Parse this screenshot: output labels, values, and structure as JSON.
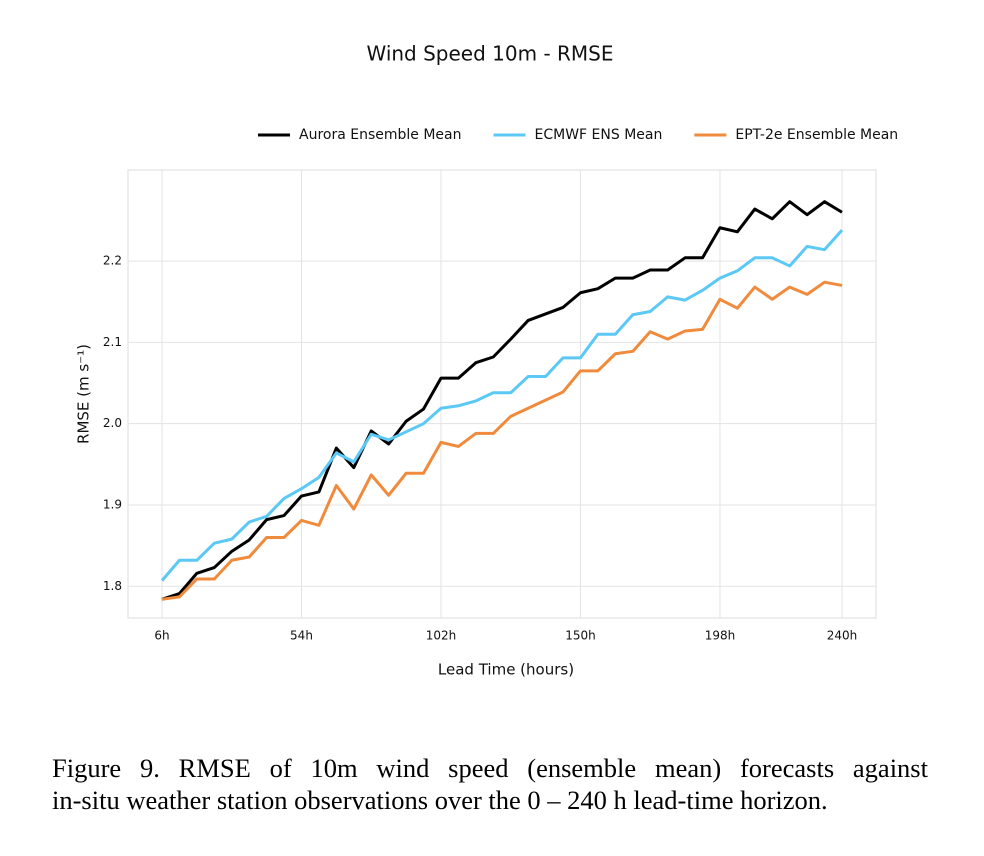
{
  "chart_data": {
    "type": "line",
    "title": "Wind Speed 10m - RMSE",
    "x_label": "Lead Time (hours)",
    "y_label": "RMSE (m s⁻¹)",
    "x": [
      6,
      12,
      18,
      24,
      30,
      36,
      42,
      48,
      54,
      60,
      66,
      72,
      78,
      84,
      90,
      96,
      102,
      108,
      114,
      120,
      126,
      132,
      138,
      144,
      150,
      156,
      162,
      168,
      174,
      180,
      186,
      192,
      198,
      204,
      210,
      216,
      222,
      228,
      234,
      240
    ],
    "series": [
      {
        "name": "Aurora Ensemble Mean",
        "color": "#000000",
        "values": [
          1.784,
          1.791,
          1.816,
          1.823,
          1.843,
          1.857,
          1.882,
          1.887,
          1.911,
          1.916,
          1.97,
          1.946,
          1.991,
          1.975,
          2.003,
          2.018,
          2.056,
          2.056,
          2.075,
          2.082,
          2.104,
          2.127,
          2.135,
          2.143,
          2.161,
          2.166,
          2.179,
          2.179,
          2.189,
          2.189,
          2.204,
          2.204,
          2.241,
          2.236,
          2.264,
          2.252,
          2.273,
          2.257,
          2.273,
          2.26
        ]
      },
      {
        "name": "ECMWF ENS Mean",
        "color": "#5bc8f5",
        "values": [
          1.807,
          1.832,
          1.832,
          1.853,
          1.858,
          1.879,
          1.886,
          1.908,
          1.92,
          1.934,
          1.964,
          1.953,
          1.987,
          1.98,
          1.99,
          2.0,
          2.019,
          2.022,
          2.028,
          2.038,
          2.038,
          2.058,
          2.058,
          2.081,
          2.081,
          2.11,
          2.11,
          2.134,
          2.138,
          2.156,
          2.152,
          2.164,
          2.179,
          2.188,
          2.204,
          2.204,
          2.194,
          2.218,
          2.214,
          2.238
        ]
      },
      {
        "name": "EPT-2e Ensemble Mean",
        "color": "#f08a3c",
        "values": [
          1.784,
          1.787,
          1.809,
          1.809,
          1.832,
          1.836,
          1.86,
          1.86,
          1.881,
          1.875,
          1.924,
          1.895,
          1.937,
          1.912,
          1.939,
          1.939,
          1.977,
          1.972,
          1.988,
          1.988,
          2.009,
          2.019,
          2.029,
          2.039,
          2.065,
          2.065,
          2.086,
          2.089,
          2.113,
          2.104,
          2.114,
          2.116,
          2.153,
          2.142,
          2.168,
          2.153,
          2.168,
          2.159,
          2.174,
          2.17
        ]
      }
    ],
    "xlim": [
      -5.7,
      251.7
    ],
    "xticks": [
      {
        "value": 6,
        "label": "6h"
      },
      {
        "value": 54,
        "label": "54h"
      },
      {
        "value": 102,
        "label": "102h"
      },
      {
        "value": 150,
        "label": "150h"
      },
      {
        "value": 198,
        "label": "198h"
      },
      {
        "value": 240,
        "label": "240h"
      }
    ],
    "ylim": [
      1.761,
      2.312
    ],
    "yticks": [
      1.8,
      1.9,
      {
        "value": 2,
        "label": "2.0"
      },
      2.1,
      2.2
    ],
    "grid": true,
    "legend": "top"
  },
  "caption": [
    "Figure 9.  RMSE of 10m wind speed (ensemble mean) forecasts against",
    "in-situ weather station observations over the 0 – 240 h lead-time horizon."
  ]
}
